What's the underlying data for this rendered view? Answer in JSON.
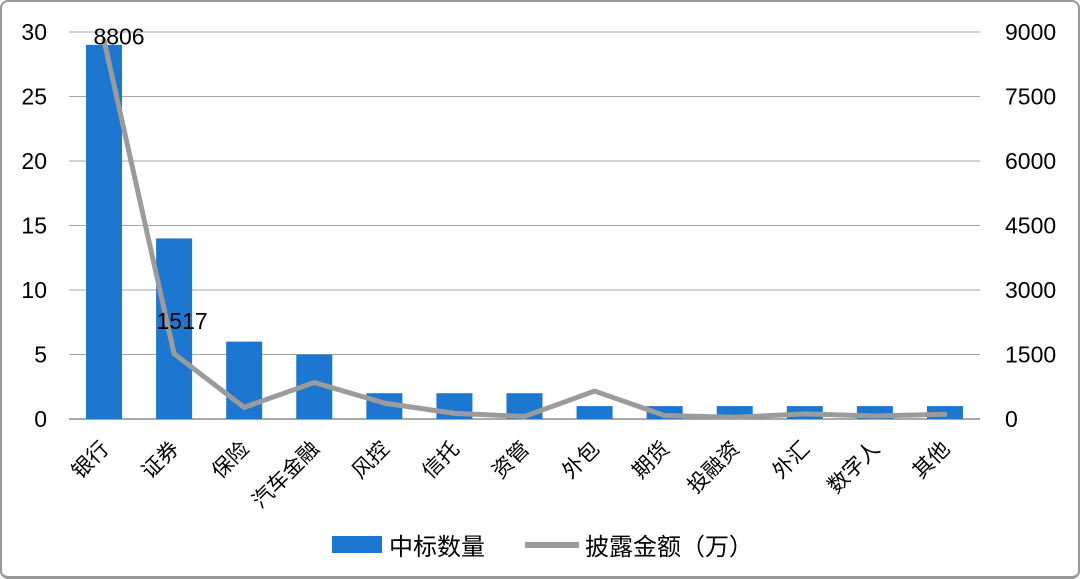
{
  "chart_data": {
    "type": "combo-bar-line",
    "title": "",
    "categories": [
      "银行",
      "证券",
      "保险",
      "汽车金融",
      "风控",
      "信托",
      "资管",
      "外包",
      "期货",
      "投融资",
      "外汇",
      "数字人",
      "其他"
    ],
    "series": [
      {
        "name": "中标数量",
        "type": "bar",
        "axis": "left",
        "color": "#1B77CF",
        "values": [
          29,
          14,
          6,
          5,
          2,
          2,
          2,
          1,
          1,
          1,
          1,
          1,
          1
        ]
      },
      {
        "name": "披露金额（万）",
        "type": "line",
        "axis": "right",
        "color": "#9B9B9B",
        "values": [
          8806,
          1517,
          270,
          850,
          370,
          130,
          60,
          650,
          80,
          40,
          120,
          70,
          110
        ]
      }
    ],
    "left_axis": {
      "min": 0,
      "max": 30,
      "step": 5,
      "ticks": [
        "0",
        "5",
        "10",
        "15",
        "20",
        "25",
        "30"
      ]
    },
    "right_axis": {
      "min": 0,
      "max": 9000,
      "step": 1500,
      "ticks": [
        "0",
        "1500",
        "3000",
        "4500",
        "6000",
        "7500",
        "9000"
      ]
    },
    "data_labels": [
      {
        "category_index": 0,
        "series": "披露金额（万）",
        "text": "8806"
      },
      {
        "category_index": 1,
        "series": "披露金额（万）",
        "text": "1517"
      }
    ],
    "grid": "horizontal",
    "legend_position": "bottom-center",
    "colors": {
      "grid": "#A6A6A6",
      "baseline": "#8C8C8C",
      "text": "#000000",
      "border": "#999999",
      "background": "#FFFFFF"
    }
  }
}
